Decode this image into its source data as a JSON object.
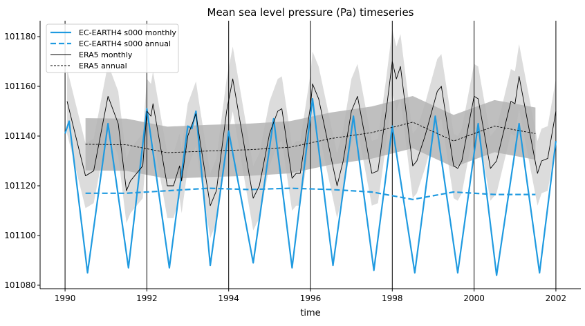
{
  "chart_data": {
    "type": "line",
    "title": "Mean sea level pressure (Pa) timeseries",
    "xlabel": "time",
    "ylabel": "",
    "xlim": [
      1989.39,
      2002.61
    ],
    "ylim": [
      101078.6,
      101186.4
    ],
    "xticks": [
      1990,
      1992,
      1994,
      1996,
      1998,
      2000,
      2002
    ],
    "xtick_labels": [
      "1990",
      "1992",
      "1994",
      "1996",
      "1998",
      "2000",
      "2002"
    ],
    "yticks": [
      101080,
      101100,
      101120,
      101140,
      101160,
      101180
    ],
    "ytick_labels": [
      "101080",
      "101100",
      "101120",
      "101140",
      "101160",
      "101180"
    ],
    "vertical_lines": [
      1990,
      1992,
      1994,
      1996,
      1998,
      2000,
      2002
    ],
    "grid": false,
    "legend_placement": "top-left",
    "colors": {
      "ec_earth": "#1f9ae0",
      "era5": "#000000",
      "band_light": "#dcdcdc",
      "band_dark": "#b4b4b4"
    },
    "series": [
      {
        "name": "EC-EARTH4 s000 monthly",
        "style": "solid",
        "x": [
          1990.0,
          1990.1,
          1990.55,
          1991.05,
          1991.55,
          1992.0,
          1992.55,
          1993.0,
          1993.1,
          1993.2,
          1993.55,
          1994.0,
          1994.6,
          1995.1,
          1995.55,
          1996.05,
          1996.55,
          1997.05,
          1997.55,
          1998.0,
          1998.55,
          1999.05,
          1999.6,
          2000.1,
          2000.55,
          2001.1,
          2001.6,
          2002.0
        ],
        "y": [
          101141,
          101146,
          101085,
          101145,
          101087,
          101151,
          101087,
          101144,
          101143,
          101150,
          101088,
          101142,
          101089,
          101147,
          101087,
          101155,
          101088,
          101148,
          101086,
          101144,
          101085,
          101148,
          101085,
          101145,
          101084,
          101145,
          101085,
          101138
        ]
      },
      {
        "name": "EC-EARTH4 s000 annual",
        "style": "dashed",
        "x": [
          1990.5,
          1991.5,
          1992.5,
          1993.5,
          1994.5,
          1995.5,
          1996.5,
          1997.5,
          1998.5,
          1999.5,
          2000.5,
          2001.5
        ],
        "y": [
          101117,
          101117,
          101118,
          101119,
          101118.5,
          101119,
          101118.5,
          101117.5,
          101114.5,
          101117.5,
          101116.5,
          101116.5
        ]
      },
      {
        "name": "ERA5 monthly",
        "style": "solid",
        "x": [
          1990.05,
          1990.5,
          1990.7,
          1991.05,
          1991.3,
          1991.5,
          1991.6,
          1991.9,
          1992.0,
          1992.1,
          1992.15,
          1992.5,
          1992.65,
          1992.8,
          1992.85,
          1993.0,
          1993.2,
          1993.3,
          1993.55,
          1993.7,
          1993.95,
          1994.1,
          1994.6,
          1994.75,
          1995.0,
          1995.2,
          1995.3,
          1995.55,
          1995.65,
          1995.75,
          1996.0,
          1996.05,
          1996.2,
          1996.65,
          1996.8,
          1997.0,
          1997.15,
          1997.5,
          1997.65,
          1997.85,
          1998.0,
          1998.1,
          1998.2,
          1998.5,
          1998.6,
          1998.8,
          1999.1,
          1999.2,
          1999.5,
          1999.6,
          1999.7,
          2000.0,
          2000.1,
          2000.4,
          2000.55,
          2000.9,
          2001.0,
          2001.1,
          2001.55,
          2001.65,
          2001.8,
          2002.0
        ],
        "y": [
          101154,
          101124,
          101126,
          101156,
          101145,
          101118,
          101122,
          101128,
          101150,
          101148,
          101153,
          101120,
          101120,
          101128,
          101122,
          101140,
          101149,
          101138,
          101112,
          101118,
          101150,
          101163,
          101115,
          101120,
          101141,
          101150,
          101151,
          101123,
          101125,
          101125,
          101152,
          101161,
          101155,
          101120,
          101130,
          101150,
          101156,
          101125,
          101126,
          101150,
          101170,
          101163,
          101168,
          101128,
          101130,
          101140,
          101158,
          101160,
          101128,
          101127,
          101130,
          101156,
          101155,
          101127,
          101130,
          101154,
          101153,
          101164,
          101125,
          101130,
          101131,
          101150
        ]
      },
      {
        "name": "ERA5 annual",
        "style": "dotted",
        "x": [
          1990.5,
          1991.5,
          1992.5,
          1993.5,
          1994.5,
          1995.5,
          1996.5,
          1997.5,
          1998.5,
          1999.5,
          2000.5,
          2001.5
        ],
        "y": [
          101136.7,
          101136.5,
          101133.3,
          101134,
          101134.5,
          101135.5,
          101139,
          101141.4,
          101145.6,
          101138,
          101144,
          101141
        ]
      }
    ],
    "shading": [
      {
        "around": "ERA5 monthly",
        "halfwidth": 13
      },
      {
        "around": "ERA5 annual",
        "halfwidth": 10.5
      }
    ]
  }
}
